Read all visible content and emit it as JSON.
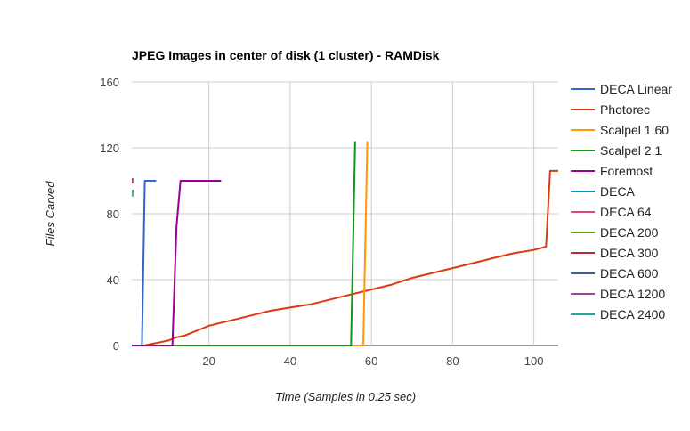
{
  "chart_data": {
    "type": "line",
    "title": "JPEG Images in center of disk (1 cluster) - RAMDisk",
    "xlabel": "Time (Samples in 0.25 sec)",
    "ylabel": "Files Carved",
    "xlim": [
      1,
      106
    ],
    "ylim": [
      0,
      160
    ],
    "x_ticks": [
      20,
      40,
      60,
      80,
      100
    ],
    "y_ticks": [
      0,
      40,
      80,
      120,
      160
    ],
    "grid": true,
    "legend_position": "right",
    "series": [
      {
        "name": "DECA Linear",
        "color": "#3366cc",
        "points": [
          [
            1,
            0
          ],
          [
            2,
            0
          ],
          [
            3,
            0
          ],
          [
            3.5,
            0
          ],
          [
            4.2,
            100
          ],
          [
            5,
            100
          ],
          [
            6,
            100
          ],
          [
            7,
            100
          ]
        ]
      },
      {
        "name": "Photorec",
        "color": "#dc3912",
        "points": [
          [
            1,
            0
          ],
          [
            3,
            0
          ],
          [
            4,
            0
          ],
          [
            6,
            1
          ],
          [
            8,
            2
          ],
          [
            10,
            3
          ],
          [
            12,
            5
          ],
          [
            14,
            6
          ],
          [
            16,
            8
          ],
          [
            18,
            10
          ],
          [
            20,
            12
          ],
          [
            25,
            15
          ],
          [
            30,
            18
          ],
          [
            35,
            21
          ],
          [
            40,
            23
          ],
          [
            45,
            25
          ],
          [
            50,
            28
          ],
          [
            55,
            31
          ],
          [
            60,
            34
          ],
          [
            65,
            37
          ],
          [
            70,
            41
          ],
          [
            75,
            44
          ],
          [
            80,
            47
          ],
          [
            85,
            50
          ],
          [
            90,
            53
          ],
          [
            95,
            56
          ],
          [
            100,
            58
          ],
          [
            103,
            60
          ],
          [
            104,
            106
          ],
          [
            106,
            106
          ]
        ]
      },
      {
        "name": "Scalpel 1.60",
        "color": "#ff9900",
        "points": [
          [
            1,
            0
          ],
          [
            10,
            0
          ],
          [
            20,
            0
          ],
          [
            30,
            0
          ],
          [
            40,
            0
          ],
          [
            50,
            0
          ],
          [
            55,
            0
          ],
          [
            57,
            0
          ],
          [
            58,
            0
          ],
          [
            59,
            124
          ]
        ]
      },
      {
        "name": "Scalpel 2.1",
        "color": "#109618",
        "points": [
          [
            1,
            0
          ],
          [
            10,
            0
          ],
          [
            20,
            0
          ],
          [
            30,
            0
          ],
          [
            40,
            0
          ],
          [
            50,
            0
          ],
          [
            54,
            0
          ],
          [
            55,
            0
          ],
          [
            56,
            124
          ]
        ]
      },
      {
        "name": "Foremost",
        "color": "#990099",
        "points": [
          [
            1,
            0
          ],
          [
            5,
            0
          ],
          [
            10,
            0
          ],
          [
            11,
            0
          ],
          [
            12,
            72
          ],
          [
            13,
            100
          ],
          [
            15,
            100
          ],
          [
            18,
            100
          ],
          [
            20,
            100
          ],
          [
            23,
            100
          ]
        ]
      },
      {
        "name": "DECA",
        "color": "#0099c6",
        "points": [
          [
            1,
            93
          ],
          [
            1.4,
            93
          ]
        ]
      },
      {
        "name": "DECA 64",
        "color": "#dd4477",
        "points": [
          [
            1,
            100
          ],
          [
            1.4,
            100
          ]
        ]
      },
      {
        "name": "DECA 200",
        "color": "#66aa00",
        "points": [
          [
            1,
            92
          ],
          [
            1.4,
            92
          ]
        ]
      },
      {
        "name": "DECA 300",
        "color": "#b82e2e",
        "points": [
          [
            1,
            101
          ],
          [
            1.4,
            101
          ]
        ]
      },
      {
        "name": "DECA 600",
        "color": "#316395",
        "points": [
          [
            1,
            94
          ],
          [
            1.4,
            94
          ]
        ]
      },
      {
        "name": "DECA 1200",
        "color": "#994499",
        "points": [
          [
            1,
            99
          ],
          [
            1.4,
            99
          ]
        ]
      },
      {
        "name": "DECA 2400",
        "color": "#22aa99",
        "points": [
          [
            1,
            91
          ],
          [
            1.4,
            91
          ]
        ]
      }
    ]
  }
}
